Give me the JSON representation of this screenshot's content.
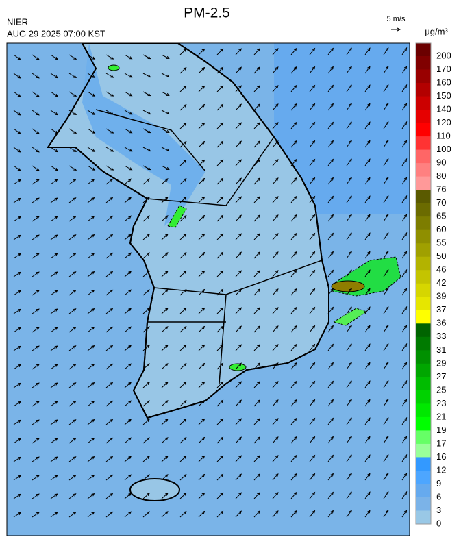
{
  "header": {
    "title": "PM-2.5",
    "source": "NIER",
    "datetime": "AUG 29 2025 07:00 KST",
    "wind_scale": "5 m/s"
  },
  "legend": {
    "unit": "μg/m³",
    "labels": [
      200,
      170,
      160,
      150,
      140,
      120,
      110,
      100,
      90,
      80,
      76,
      70,
      65,
      60,
      55,
      50,
      46,
      42,
      39,
      37,
      36,
      33,
      31,
      29,
      27,
      25,
      23,
      21,
      19,
      17,
      16,
      12,
      9,
      6,
      3,
      0
    ],
    "colors": [
      "#6b0000",
      "#800000",
      "#990000",
      "#b30000",
      "#cc0000",
      "#e60000",
      "#ff0000",
      "#ff3333",
      "#ff6666",
      "#ff8080",
      "#ff9999",
      "#5a5a00",
      "#6b6b00",
      "#7d7d00",
      "#8f8f00",
      "#a0a000",
      "#b3b300",
      "#c4c400",
      "#d6d600",
      "#e6e600",
      "#ffff00",
      "#006400",
      "#007a00",
      "#009000",
      "#00a600",
      "#00bc00",
      "#00d200",
      "#00e800",
      "#00ff00",
      "#66ff66",
      "#99ff99",
      "#3399ff",
      "#4da6ff",
      "#66aaee",
      "#7bb3e8",
      "#99c8e6"
    ]
  }
}
